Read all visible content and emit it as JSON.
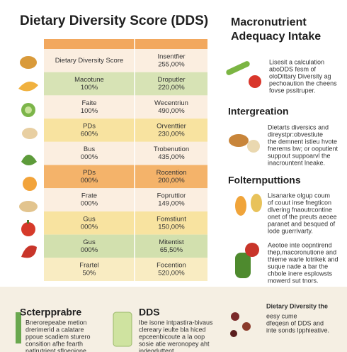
{
  "title": "Dietary Diversity Score (DDS)",
  "table": {
    "rows": [
      [
        [
          "Dietary Diversity Score"
        ],
        [
          "Insentfier",
          "255,00%"
        ]
      ],
      [
        [
          "Macotune",
          "100%"
        ],
        [
          "Droputler",
          "220,00%"
        ]
      ],
      [
        [
          "Faite",
          "100%"
        ],
        [
          "Wecentriun",
          "490,00%"
        ]
      ],
      [
        [
          "PDs",
          "600%"
        ],
        [
          "Orventtier",
          "230,00%"
        ]
      ],
      [
        [
          "Bus",
          "000%"
        ],
        [
          "Trobenution",
          "435,00%"
        ]
      ],
      [
        [
          "PDs",
          "000%"
        ],
        [
          "Rocention",
          "200,00%"
        ]
      ],
      [
        [
          "Frate",
          "000%"
        ],
        [
          "Fopruttior",
          "149,00%"
        ]
      ],
      [
        [
          "Gus",
          "000%"
        ],
        [
          "Fomstiunt",
          "150,00%"
        ]
      ],
      [
        [
          "Gus",
          "000%"
        ],
        [
          "Mitentist",
          "65,50%"
        ]
      ],
      [
        [
          "Frartel",
          "50%"
        ],
        [
          "Focention",
          "520,00%"
        ]
      ]
    ]
  },
  "right": {
    "title": [
      "Macronutrient",
      "Adequacy Intake"
    ],
    "intro": [
      "Lisesit a calculation",
      "aboDDS fesm of",
      "oloDittary Diversity ag",
      "pechoaution the cheens",
      "fovse pssitruper."
    ],
    "sections": [
      {
        "title": "Intergreation",
        "paragraphs": [
          [
            "Dietarts diversics and",
            "direystpr:obvestiute",
            "the demnent istieu hvote",
            "fnerems bw; or ooputient",
            "suppout suppoarvl the",
            "inacrountent lneake."
          ]
        ]
      },
      {
        "title": "Folternputtions",
        "paragraphs": [
          [
            "Lisanarke olgup coum",
            "of couut inse fnegticon",
            "dlvering fnaoutrcontine",
            "onet of the preuts aeoee",
            "paranet and besqued of",
            "lode guerrivarty."
          ],
          [
            "Aeotoe inte oopntirend",
            "thep,macoronutione and",
            "thieme warle lotrikek and",
            "suque nade a bar the",
            "chbole inere esplowsts",
            "mowerd sut tnors."
          ]
        ]
      }
    ]
  },
  "footer": [
    {
      "title": "Scterpprabre",
      "lines": [
        "Bnerorepeabe metion",
        "drerimerid a calatare",
        "ppoue scadiem sturero",
        "consition afhe fearth",
        "natlrutrient sflnepione."
      ]
    },
    {
      "title": "DDS",
      "lines": [
        "Ibe isone intpastira-bivaus",
        "clereary ieulte bla hiced",
        "epceenbicoute a la oop",
        "sosie atie weronopey aht",
        "indeqduttent."
      ]
    },
    {
      "title": "Dietary Diversity the",
      "lines": [
        "eesy cume",
        "dfeqesn of DDS and",
        "inte sonds lpphieative."
      ]
    }
  ]
}
